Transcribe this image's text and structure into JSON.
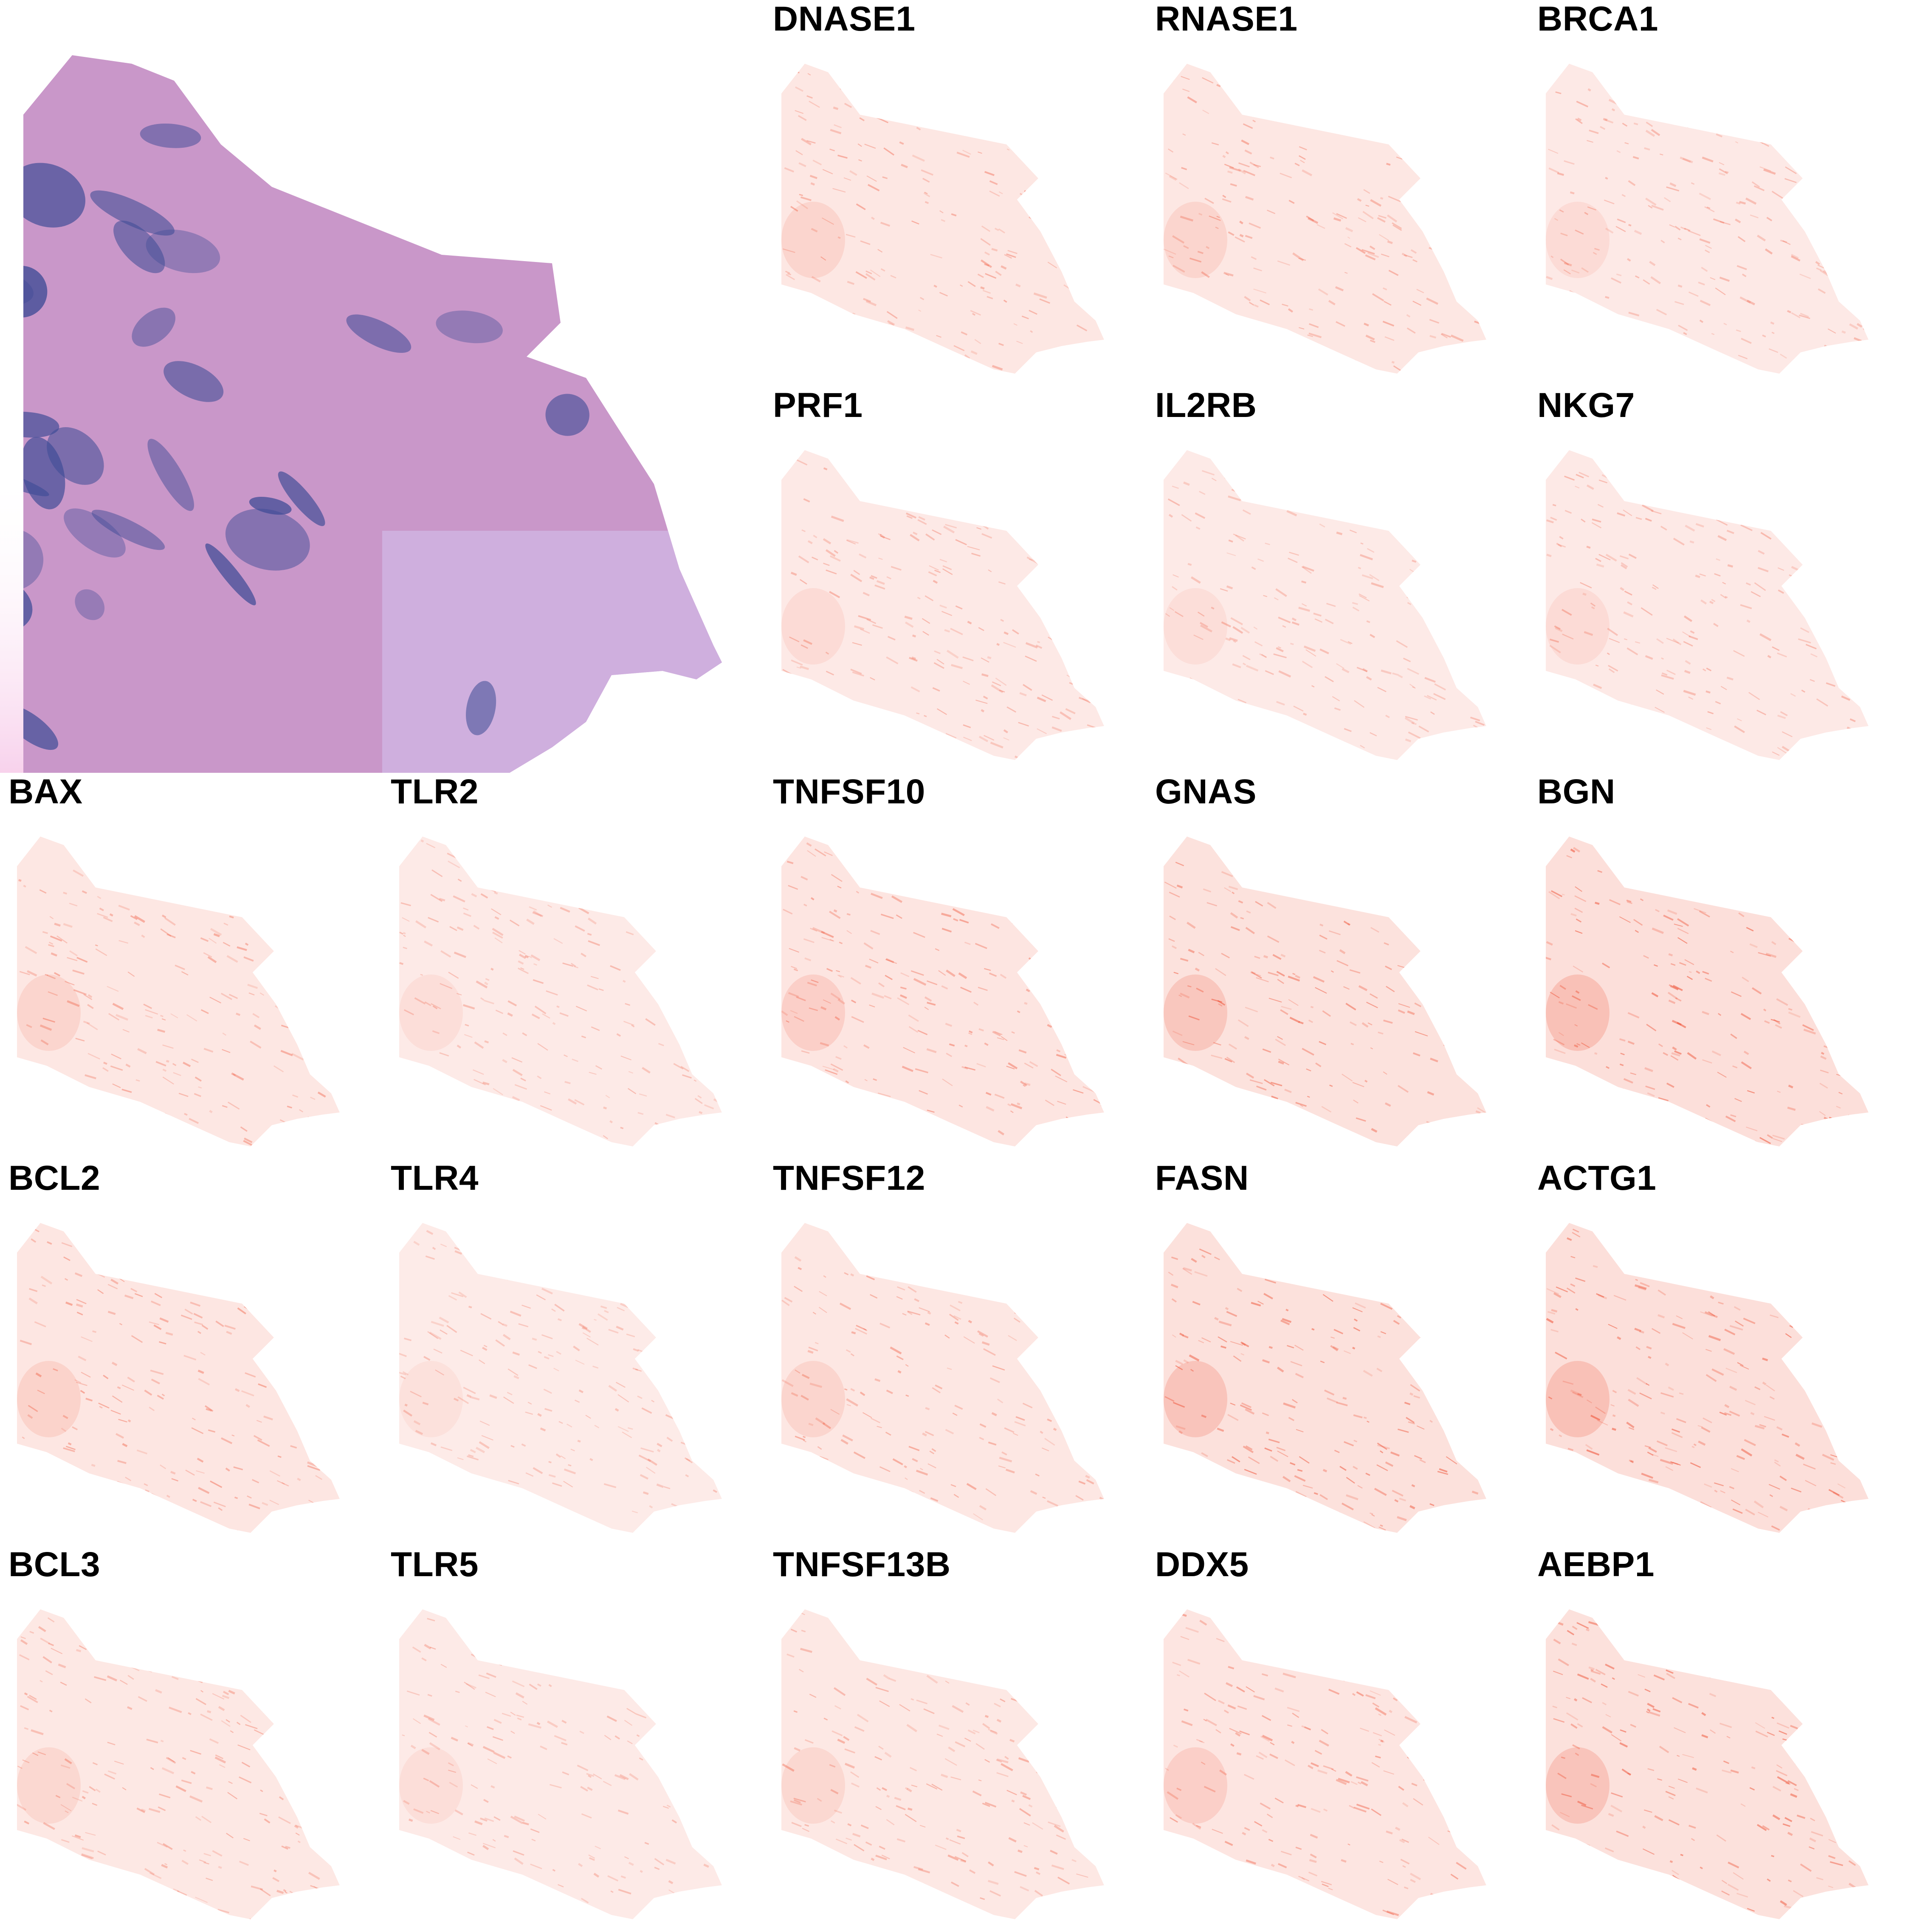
{
  "he_image": {
    "icon": "he-stained-tissue-section"
  },
  "colors": {
    "expression_low": "#ffffff",
    "expression_high": "#ee4c2f",
    "he_nuclei": "#3f4c96",
    "he_stroma": "#cf97cc"
  },
  "panels": [
    {
      "gene": "DNASE1",
      "level": 0.45
    },
    {
      "gene": "RNASE1",
      "level": 0.45
    },
    {
      "gene": "BRCA1",
      "level": 0.35
    },
    {
      "gene": "PRF1",
      "level": 0.35
    },
    {
      "gene": "IL2RB",
      "level": 0.3
    },
    {
      "gene": "NKG7",
      "level": 0.35
    },
    {
      "gene": "BAX",
      "level": 0.45
    },
    {
      "gene": "TLR2",
      "level": 0.3
    },
    {
      "gene": "TNFSF10",
      "level": 0.55
    },
    {
      "gene": "GNAS",
      "level": 0.7
    },
    {
      "gene": "BGN",
      "level": 0.8
    },
    {
      "gene": "BCL2",
      "level": 0.5
    },
    {
      "gene": "TLR4",
      "level": 0.25
    },
    {
      "gene": "TNFSF12",
      "level": 0.45
    },
    {
      "gene": "FASN",
      "level": 0.75
    },
    {
      "gene": "ACTG1",
      "level": 0.8
    },
    {
      "gene": "BCL3",
      "level": 0.4
    },
    {
      "gene": "TLR5",
      "level": 0.3
    },
    {
      "gene": "TNFSF13B",
      "level": 0.4
    },
    {
      "gene": "DDX5",
      "level": 0.55
    },
    {
      "gene": "AEBP1",
      "level": 0.75
    }
  ]
}
